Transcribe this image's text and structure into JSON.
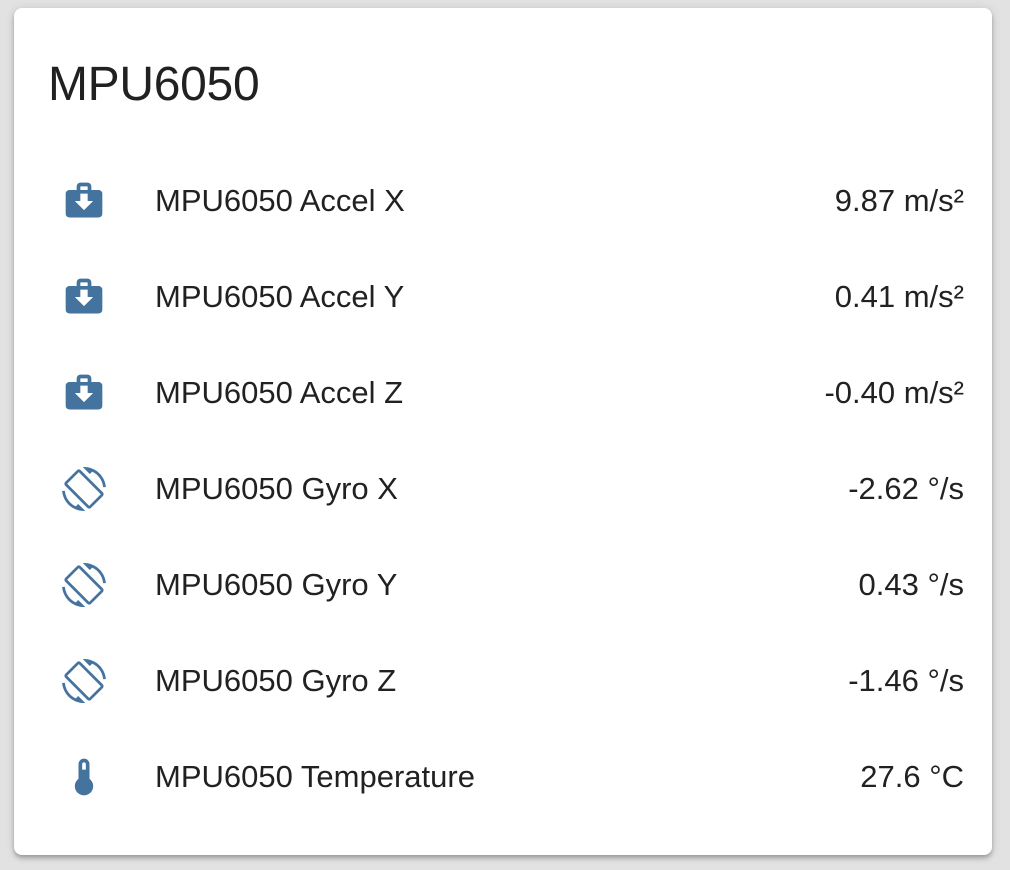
{
  "card": {
    "title": "MPU6050",
    "entities": [
      {
        "name": "MPU6050 Accel X",
        "value": "9.87 m/s²",
        "icon": "briefcase-download-icon"
      },
      {
        "name": "MPU6050 Accel Y",
        "value": "0.41 m/s²",
        "icon": "briefcase-download-icon"
      },
      {
        "name": "MPU6050 Accel Z",
        "value": "-0.40 m/s²",
        "icon": "briefcase-download-icon"
      },
      {
        "name": "MPU6050 Gyro X",
        "value": "-2.62 °/s",
        "icon": "screen-rotation-icon"
      },
      {
        "name": "MPU6050 Gyro Y",
        "value": "0.43 °/s",
        "icon": "screen-rotation-icon"
      },
      {
        "name": "MPU6050 Gyro Z",
        "value": "-1.46 °/s",
        "icon": "screen-rotation-icon"
      },
      {
        "name": "MPU6050 Temperature",
        "value": "27.6 °C",
        "icon": "thermometer-icon"
      }
    ],
    "colors": {
      "icon": "#44739e",
      "text": "#212121",
      "card_bg": "#ffffff",
      "page_bg": "#e2e2e2"
    }
  }
}
